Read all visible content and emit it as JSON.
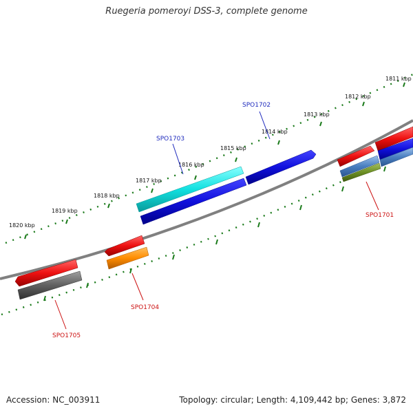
{
  "title": "Ruegeria pomeroyi DSS-3, complete genome",
  "footer": {
    "accession": "Accession: NC_003911",
    "topology": "Topology: circular; Length: 4,109,442 bp; Genes: 3,872"
  },
  "scale_labels": [
    "1811 kbp",
    "1812 kbp",
    "1813 kbp",
    "1814 kbp",
    "1815 kbp",
    "1816 kbp",
    "1817 kbp",
    "1818 kbp",
    "1819 kbp",
    "1820 kbp"
  ],
  "genes": [
    {
      "name": "SPO1701",
      "color": "#cc1111"
    },
    {
      "name": "SPO1702",
      "color": "#1f2bbd"
    },
    {
      "name": "SPO1703",
      "color": "#1f2bbd"
    },
    {
      "name": "SPO1704",
      "color": "#cc1111"
    },
    {
      "name": "SPO1705",
      "color": "#cc1111"
    }
  ],
  "colors": {
    "backbone": "#808080",
    "tick": "#1a7a1a",
    "red": "#ee1111",
    "blue": "#1010dd",
    "cyan": "#11e0e0",
    "orange": "#ff8c00",
    "gray": "#606060",
    "steelblue": "#4a7fc0",
    "olive": "#6b8e23"
  }
}
